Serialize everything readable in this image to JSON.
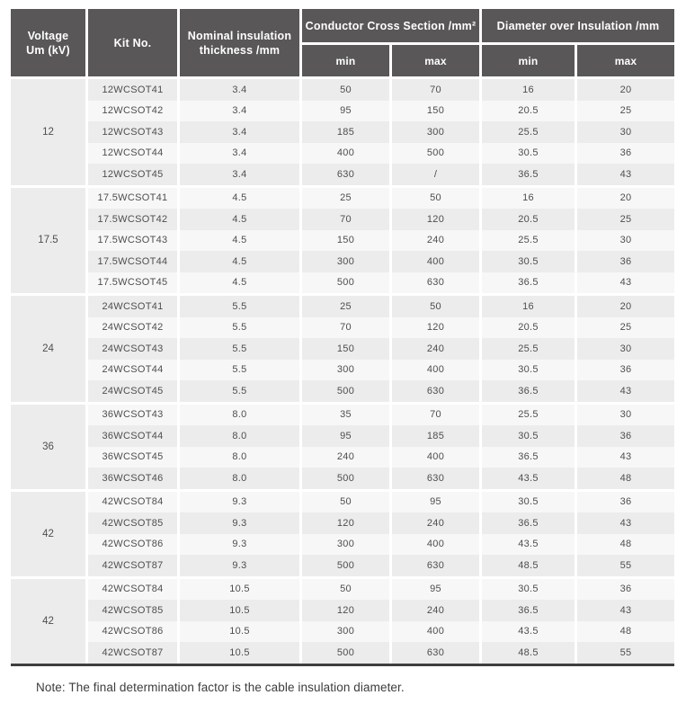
{
  "colors": {
    "header_bg": "#595757",
    "header_text": "#ffffff",
    "stripe_dark": "#ececec",
    "stripe_light": "#f7f7f7",
    "voltage_bg": "#ececec",
    "text": "#4e4e4e",
    "bottom_rule": "#3f3f3f"
  },
  "table": {
    "headers": {
      "voltage_line1": "Voltage",
      "voltage_line2": "Um (kV)",
      "kit": "Kit No.",
      "thickness_line1": "Nominal insulation",
      "thickness_line2": "thickness /mm",
      "ccs": "Conductor Cross Section /mm²",
      "dia": "Diameter over Insulation /mm",
      "min": "min",
      "max": "max"
    },
    "groups": [
      {
        "voltage": "12",
        "rows": [
          {
            "kit": "12WCSOT41",
            "thickness": "3.4",
            "ccs_min": "50",
            "ccs_max": "70",
            "dia_min": "16",
            "dia_max": "20"
          },
          {
            "kit": "12WCSOT42",
            "thickness": "3.4",
            "ccs_min": "95",
            "ccs_max": "150",
            "dia_min": "20.5",
            "dia_max": "25"
          },
          {
            "kit": "12WCSOT43",
            "thickness": "3.4",
            "ccs_min": "185",
            "ccs_max": "300",
            "dia_min": "25.5",
            "dia_max": "30"
          },
          {
            "kit": "12WCSOT44",
            "thickness": "3.4",
            "ccs_min": "400",
            "ccs_max": "500",
            "dia_min": "30.5",
            "dia_max": "36"
          },
          {
            "kit": "12WCSOT45",
            "thickness": "3.4",
            "ccs_min": "630",
            "ccs_max": "/",
            "dia_min": "36.5",
            "dia_max": "43"
          }
        ]
      },
      {
        "voltage": "17.5",
        "rows": [
          {
            "kit": "17.5WCSOT41",
            "thickness": "4.5",
            "ccs_min": "25",
            "ccs_max": "50",
            "dia_min": "16",
            "dia_max": "20"
          },
          {
            "kit": "17.5WCSOT42",
            "thickness": "4.5",
            "ccs_min": "70",
            "ccs_max": "120",
            "dia_min": "20.5",
            "dia_max": "25"
          },
          {
            "kit": "17.5WCSOT43",
            "thickness": "4.5",
            "ccs_min": "150",
            "ccs_max": "240",
            "dia_min": "25.5",
            "dia_max": "30"
          },
          {
            "kit": "17.5WCSOT44",
            "thickness": "4.5",
            "ccs_min": "300",
            "ccs_max": "400",
            "dia_min": "30.5",
            "dia_max": "36"
          },
          {
            "kit": "17.5WCSOT45",
            "thickness": "4.5",
            "ccs_min": "500",
            "ccs_max": "630",
            "dia_min": "36.5",
            "dia_max": "43"
          }
        ]
      },
      {
        "voltage": "24",
        "rows": [
          {
            "kit": "24WCSOT41",
            "thickness": "5.5",
            "ccs_min": "25",
            "ccs_max": "50",
            "dia_min": "16",
            "dia_max": "20"
          },
          {
            "kit": "24WCSOT42",
            "thickness": "5.5",
            "ccs_min": "70",
            "ccs_max": "120",
            "dia_min": "20.5",
            "dia_max": "25"
          },
          {
            "kit": "24WCSOT43",
            "thickness": "5.5",
            "ccs_min": "150",
            "ccs_max": "240",
            "dia_min": "25.5",
            "dia_max": "30"
          },
          {
            "kit": "24WCSOT44",
            "thickness": "5.5",
            "ccs_min": "300",
            "ccs_max": "400",
            "dia_min": "30.5",
            "dia_max": "36"
          },
          {
            "kit": "24WCSOT45",
            "thickness": "5.5",
            "ccs_min": "500",
            "ccs_max": "630",
            "dia_min": "36.5",
            "dia_max": "43"
          }
        ]
      },
      {
        "voltage": "36",
        "rows": [
          {
            "kit": "36WCSOT43",
            "thickness": "8.0",
            "ccs_min": "35",
            "ccs_max": "70",
            "dia_min": "25.5",
            "dia_max": "30"
          },
          {
            "kit": "36WCSOT44",
            "thickness": "8.0",
            "ccs_min": "95",
            "ccs_max": "185",
            "dia_min": "30.5",
            "dia_max": "36"
          },
          {
            "kit": "36WCSOT45",
            "thickness": "8.0",
            "ccs_min": "240",
            "ccs_max": "400",
            "dia_min": "36.5",
            "dia_max": "43"
          },
          {
            "kit": "36WCSOT46",
            "thickness": "8.0",
            "ccs_min": "500",
            "ccs_max": "630",
            "dia_min": "43.5",
            "dia_max": "48"
          }
        ]
      },
      {
        "voltage": "42",
        "rows": [
          {
            "kit": "42WCSOT84",
            "thickness": "9.3",
            "ccs_min": "50",
            "ccs_max": "95",
            "dia_min": "30.5",
            "dia_max": "36"
          },
          {
            "kit": "42WCSOT85",
            "thickness": "9.3",
            "ccs_min": "120",
            "ccs_max": "240",
            "dia_min": "36.5",
            "dia_max": "43"
          },
          {
            "kit": "42WCSOT86",
            "thickness": "9.3",
            "ccs_min": "300",
            "ccs_max": "400",
            "dia_min": "43.5",
            "dia_max": "48"
          },
          {
            "kit": "42WCSOT87",
            "thickness": "9.3",
            "ccs_min": "500",
            "ccs_max": "630",
            "dia_min": "48.5",
            "dia_max": "55"
          }
        ]
      },
      {
        "voltage": "42",
        "rows": [
          {
            "kit": "42WCSOT84",
            "thickness": "10.5",
            "ccs_min": "50",
            "ccs_max": "95",
            "dia_min": "30.5",
            "dia_max": "36"
          },
          {
            "kit": "42WCSOT85",
            "thickness": "10.5",
            "ccs_min": "120",
            "ccs_max": "240",
            "dia_min": "36.5",
            "dia_max": "43"
          },
          {
            "kit": "42WCSOT86",
            "thickness": "10.5",
            "ccs_min": "300",
            "ccs_max": "400",
            "dia_min": "43.5",
            "dia_max": "48"
          },
          {
            "kit": "42WCSOT87",
            "thickness": "10.5",
            "ccs_min": "500",
            "ccs_max": "630",
            "dia_min": "48.5",
            "dia_max": "55"
          }
        ]
      }
    ]
  },
  "note": "Note: The final determination factor is the cable insulation diameter."
}
